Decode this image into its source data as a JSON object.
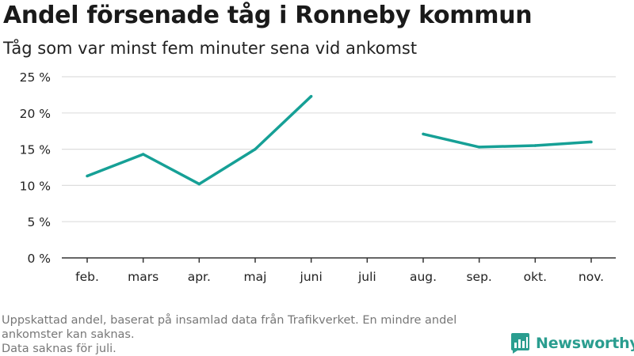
{
  "header": {
    "title": "Andel försenade tåg i Ronneby kommun",
    "subtitle": "Tåg som var minst fem minuter sena vid ankomst"
  },
  "footnote": {
    "line1": "Uppskattad andel, baserat på insamlad data från Trafikverket. En mindre andel",
    "line2": "ankomster kan saknas.",
    "line3": "Data saknas för juli."
  },
  "brand": {
    "name": "Newsworthy",
    "icon": "newsworthy-logo-icon",
    "color": "#2a9d8f"
  },
  "colors": {
    "line": "#16a096",
    "grid": "#dddddd",
    "axis": "#333333"
  },
  "chart_data": {
    "type": "line",
    "title": "Andel försenade tåg i Ronneby kommun",
    "subtitle": "Tåg som var minst fem minuter sena vid ankomst",
    "xlabel": "",
    "ylabel": "",
    "categories": [
      "feb.",
      "mars",
      "apr.",
      "maj",
      "juni",
      "juli",
      "aug.",
      "sep.",
      "okt.",
      "nov."
    ],
    "series": [
      {
        "values": [
          11.3,
          14.3,
          10.2,
          15.0,
          22.3,
          null,
          17.1,
          15.3,
          15.5,
          16.0
        ]
      }
    ],
    "ylim": [
      0,
      25
    ],
    "yticks": [
      0,
      5,
      10,
      15,
      20,
      25
    ],
    "ytick_labels": [
      "0 %",
      "5 %",
      "10 %",
      "15 %",
      "20 %",
      "25 %"
    ],
    "grid": true,
    "legend": "none"
  }
}
